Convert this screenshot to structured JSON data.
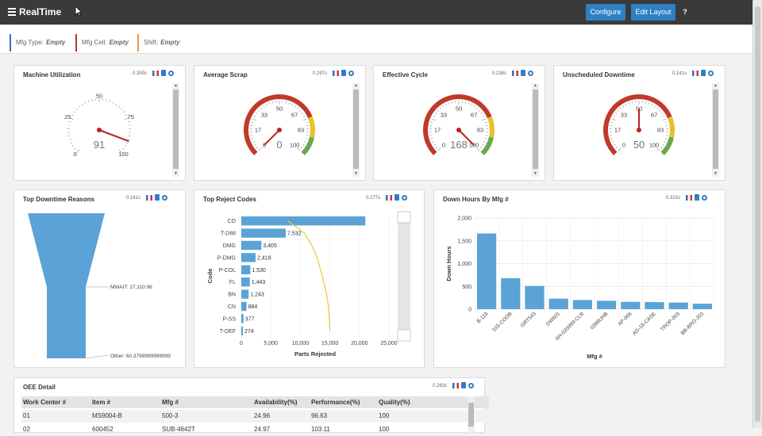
{
  "app": {
    "title": "RealTime"
  },
  "header": {
    "configure_label": "Configure",
    "edit_layout_label": "Edit Layout",
    "help_label": "?"
  },
  "filters": [
    {
      "label": "Mfg Type:",
      "value": "Empty",
      "color": "#3b6db5"
    },
    {
      "label": "Mfg Cell:",
      "value": "Empty",
      "color": "#c33333"
    },
    {
      "label": "Shift:",
      "value": "Empty",
      "color": "#e59a3a"
    }
  ],
  "gauges": [
    {
      "title": "Machine Utilization",
      "time": "0.359s",
      "value": 91,
      "min": 0,
      "max": 100,
      "ticks": [
        "0",
        "25",
        "50",
        "75",
        "100"
      ],
      "style": "plain"
    },
    {
      "title": "Average Scrap",
      "time": "0.297s",
      "value": 0,
      "min": 0,
      "max": 100,
      "ticks": [
        "0",
        "17",
        "33",
        "50",
        "67",
        "83",
        "100"
      ],
      "style": "banded"
    },
    {
      "title": "Effective Cycle",
      "time": "0.236s",
      "value": 168,
      "min": 0,
      "max": 100,
      "ticks": [
        "0",
        "17",
        "33",
        "50",
        "67",
        "83",
        "100"
      ],
      "style": "banded"
    },
    {
      "title": "Unscheduled Downtime",
      "time": "0.141s",
      "value": 50,
      "min": 0,
      "max": 100,
      "ticks": [
        "0",
        "17",
        "33",
        "50",
        "67",
        "83",
        "100"
      ],
      "style": "banded"
    }
  ],
  "downtime": {
    "title": "Top Downtime Reasons",
    "time": "0.141s",
    "labels": [
      "MWAIT: 17,110.96",
      "Other: 60.3799999999999"
    ]
  },
  "reject": {
    "title": "Top Reject Codes",
    "time": "0.177s"
  },
  "downhours": {
    "title": "Down Hours By Mfg #",
    "time": "0.323s"
  },
  "oee": {
    "title": "OEE Detail",
    "time": "0.263s",
    "columns": [
      "Work Center #",
      "Item #",
      "Mfg #",
      "Availability(%)",
      "Performance(%)",
      "Quality(%)"
    ],
    "rows": [
      [
        "01",
        "MS9004-B",
        "500-3",
        "24.96",
        "96.63",
        "100"
      ],
      [
        "02",
        "600452",
        "SUB-4642T",
        "24.97",
        "103.11",
        "100"
      ]
    ]
  },
  "chart_data": [
    {
      "type": "bar",
      "orientation": "horizontal",
      "title": "Top Reject Codes",
      "categories": [
        "CO",
        "T-DIM",
        "DMG",
        "P-DMG",
        "P-COL",
        "FL",
        "BN",
        "CN",
        "P-SS",
        "T-DEF"
      ],
      "values": [
        21000,
        7532,
        3405,
        2418,
        1530,
        1443,
        1243,
        884,
        377,
        274
      ],
      "data_labels": [
        "",
        "7,532",
        "3,405",
        "2,418",
        "1,530",
        "1,443",
        "1,243",
        "884",
        "377",
        "274"
      ],
      "xlabel": "Parts Rejected",
      "ylabel": "Code",
      "xlim": [
        0,
        25000
      ],
      "xticks": [
        "0",
        "5,000",
        "10,000",
        "15,000",
        "20,000",
        "25,000"
      ],
      "series_colors": [
        "#5ba3d6",
        "#e8c93a"
      ]
    },
    {
      "type": "bar",
      "title": "Down Hours By Mfg #",
      "categories": [
        "B-119",
        "103-COOB",
        "GRT543",
        "DW601",
        "SH-020999-CLR",
        "0388UHB",
        "AP-006",
        "AD-18-CASE",
        "TROP-003",
        "BB-BRO-201"
      ],
      "values": [
        1660,
        680,
        510,
        230,
        200,
        185,
        160,
        155,
        145,
        120
      ],
      "xlabel": "Mfg #",
      "ylabel": "Down Hours",
      "ylim": [
        0,
        2000
      ],
      "yticks": [
        "0",
        "500",
        "1,000",
        "1,500",
        "2,000"
      ],
      "color": "#5ba3d6"
    }
  ]
}
